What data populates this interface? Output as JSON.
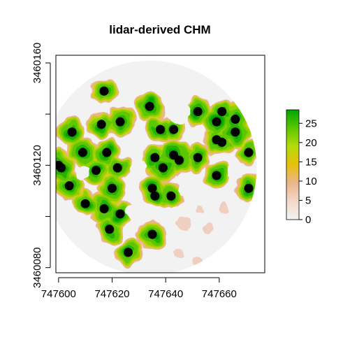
{
  "chart_data": {
    "type": "heatmap",
    "title": "lidar-derived CHM",
    "xlabel": "",
    "ylabel": "",
    "xlim": [
      747599,
      747677
    ],
    "ylim": [
      3460078,
      3460163
    ],
    "x_ticks": [
      {
        "value": 747600,
        "label": "747600"
      },
      {
        "value": 747620,
        "label": "747620"
      },
      {
        "value": 747640,
        "label": "747640"
      },
      {
        "value": 747660,
        "label": "747660"
      }
    ],
    "y_ticks": [
      {
        "value": 3460080,
        "label": "3460080"
      },
      {
        "value": 3460100,
        "label": ""
      },
      {
        "value": 3460120,
        "label": "3460120"
      },
      {
        "value": 3460140,
        "label": ""
      },
      {
        "value": 3460160,
        "label": "3460160"
      }
    ],
    "raster_extent": {
      "center_x": 747634,
      "center_y": 3460119,
      "radius": 40
    },
    "crowns": [
      {
        "x": 747617,
        "y": 3460149,
        "height": 27
      },
      {
        "x": 747634,
        "y": 3460143,
        "height": 27
      },
      {
        "x": 747652,
        "y": 3460141,
        "height": 27
      },
      {
        "x": 747661,
        "y": 3460141,
        "height": 27
      },
      {
        "x": 747666,
        "y": 3460138,
        "height": 26
      },
      {
        "x": 747659,
        "y": 3460137,
        "height": 27
      },
      {
        "x": 747616,
        "y": 3460136,
        "height": 26
      },
      {
        "x": 747623,
        "y": 3460137,
        "height": 27
      },
      {
        "x": 747605,
        "y": 3460133,
        "height": 26
      },
      {
        "x": 747638,
        "y": 3460134,
        "height": 26
      },
      {
        "x": 747643,
        "y": 3460134,
        "height": 25
      },
      {
        "x": 747666,
        "y": 3460133,
        "height": 27
      },
      {
        "x": 747659,
        "y": 3460130,
        "height": 26
      },
      {
        "x": 747661,
        "y": 3460129,
        "height": 26
      },
      {
        "x": 747609,
        "y": 3460125,
        "height": 25
      },
      {
        "x": 747618,
        "y": 3460125,
        "height": 26
      },
      {
        "x": 747636,
        "y": 3460123,
        "height": 27
      },
      {
        "x": 747643,
        "y": 3460124,
        "height": 26
      },
      {
        "x": 747645,
        "y": 3460122,
        "height": 26
      },
      {
        "x": 747652,
        "y": 3460123,
        "height": 25
      },
      {
        "x": 747671,
        "y": 3460125,
        "height": 26
      },
      {
        "x": 747600,
        "y": 3460120,
        "height": 27
      },
      {
        "x": 747601,
        "y": 3460119,
        "height": 27
      },
      {
        "x": 747622,
        "y": 3460119,
        "height": 26
      },
      {
        "x": 747639,
        "y": 3460119,
        "height": 26
      },
      {
        "x": 747614,
        "y": 3460118,
        "height": 26
      },
      {
        "x": 747659,
        "y": 3460116,
        "height": 26
      },
      {
        "x": 747604,
        "y": 3460112,
        "height": 25
      },
      {
        "x": 747620,
        "y": 3460111,
        "height": 26
      },
      {
        "x": 747635,
        "y": 3460111,
        "height": 26
      },
      {
        "x": 747636,
        "y": 3460108,
        "height": 25
      },
      {
        "x": 747642,
        "y": 3460108,
        "height": 26
      },
      {
        "x": 747671,
        "y": 3460111,
        "height": 26
      },
      {
        "x": 747610,
        "y": 3460105,
        "height": 26
      },
      {
        "x": 747617,
        "y": 3460103,
        "height": 26
      },
      {
        "x": 747623,
        "y": 3460101,
        "height": 25
      },
      {
        "x": 747619,
        "y": 3460095,
        "height": 26
      },
      {
        "x": 747635,
        "y": 3460093,
        "height": 26
      },
      {
        "x": 747626,
        "y": 3460086,
        "height": 27
      }
    ],
    "bare_patches": [
      {
        "x": 747630,
        "y": 3460131,
        "radius": 3
      },
      {
        "x": 747645,
        "y": 3460140,
        "radius": 4
      },
      {
        "x": 747628,
        "y": 3460152,
        "radius": 5
      },
      {
        "x": 747646,
        "y": 3460154,
        "radius": 4
      },
      {
        "x": 747664,
        "y": 3460153,
        "radius": 4
      },
      {
        "x": 747605,
        "y": 3460143,
        "radius": 3
      },
      {
        "x": 747630,
        "y": 3460119,
        "radius": 3
      },
      {
        "x": 747609,
        "y": 3460117,
        "radius": 2.5
      },
      {
        "x": 747666,
        "y": 3460118,
        "radius": 3
      },
      {
        "x": 747649,
        "y": 3460111,
        "radius": 4
      },
      {
        "x": 747661,
        "y": 3460104,
        "radius": 4
      },
      {
        "x": 747652,
        "y": 3460103,
        "radius": 3
      },
      {
        "x": 747646,
        "y": 3460098,
        "radius": 6
      },
      {
        "x": 747655,
        "y": 3460096,
        "radius": 4
      },
      {
        "x": 747662,
        "y": 3460088,
        "radius": 3
      },
      {
        "x": 747603,
        "y": 3460098,
        "radius": 3
      },
      {
        "x": 747644,
        "y": 3460086,
        "radius": 4
      },
      {
        "x": 747651,
        "y": 3460083,
        "radius": 4
      },
      {
        "x": 747628,
        "y": 3460102,
        "radius": 3
      }
    ],
    "colorbar": {
      "min": 0,
      "max": 28.5,
      "ticks": [
        0,
        5,
        10,
        15,
        20,
        25
      ],
      "colors": [
        "#F2F2F2",
        "#F2D8C9",
        "#EBB58C",
        "#E7C00C",
        "#B5DB0B",
        "#5CC700",
        "#00A600"
      ]
    },
    "point_color": "#000000",
    "grid": false,
    "legend": "right"
  }
}
